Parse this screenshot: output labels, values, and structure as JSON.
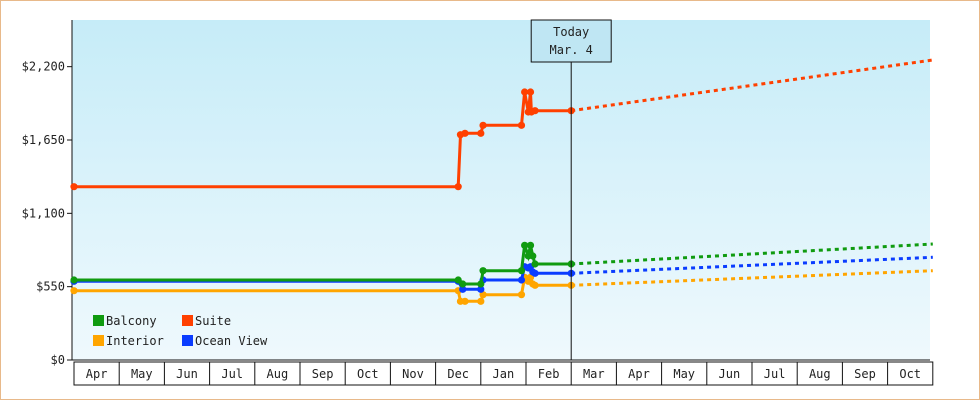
{
  "chart_data": {
    "type": "line",
    "y_axis": {
      "min": 0,
      "max": 2550,
      "ticks": [
        {
          "value": 0,
          "label": "$0"
        },
        {
          "value": 550,
          "label": "$550"
        },
        {
          "value": 1100,
          "label": "$1,100"
        },
        {
          "value": 1650,
          "label": "$1,650"
        },
        {
          "value": 2200,
          "label": "$2,200"
        }
      ]
    },
    "x_axis": {
      "months": [
        "Apr",
        "May",
        "Jun",
        "Jul",
        "Aug",
        "Sep",
        "Oct",
        "Nov",
        "Dec",
        "Jan",
        "Feb",
        "Mar",
        "Apr",
        "May",
        "Jun",
        "Jul",
        "Aug",
        "Sep",
        "Oct"
      ]
    },
    "today": {
      "line1": "Today",
      "line2": "Mar. 4",
      "month_index": 11
    },
    "legend": {
      "placement": "bottom-left"
    },
    "series": [
      {
        "name": "Suite",
        "color": "#ff4000",
        "history": [
          [
            0,
            1300
          ],
          [
            8.5,
            1300
          ],
          [
            8.55,
            1690
          ],
          [
            8.65,
            1700
          ],
          [
            9.0,
            1700
          ],
          [
            9.05,
            1760
          ],
          [
            9.9,
            1760
          ],
          [
            9.97,
            2010
          ],
          [
            10.05,
            1860
          ],
          [
            10.1,
            2010
          ],
          [
            10.12,
            1860
          ],
          [
            10.2,
            1870
          ],
          [
            11.0,
            1870
          ]
        ],
        "markers": [
          [
            0,
            1300
          ],
          [
            8.5,
            1300
          ],
          [
            8.55,
            1690
          ],
          [
            8.65,
            1700
          ],
          [
            9.0,
            1700
          ],
          [
            9.05,
            1760
          ],
          [
            9.9,
            1760
          ],
          [
            9.97,
            2010
          ],
          [
            10.05,
            1860
          ],
          [
            10.1,
            2010
          ],
          [
            10.12,
            1860
          ],
          [
            10.2,
            1870
          ],
          [
            11.0,
            1870
          ]
        ],
        "forecast": [
          [
            11.0,
            1870
          ],
          [
            19.0,
            2250
          ]
        ]
      },
      {
        "name": "Balcony",
        "color": "#109b10",
        "history": [
          [
            0,
            600
          ],
          [
            8.5,
            600
          ],
          [
            8.6,
            570
          ],
          [
            9.0,
            570
          ],
          [
            9.05,
            670
          ],
          [
            9.9,
            670
          ],
          [
            9.97,
            860
          ],
          [
            10.05,
            780
          ],
          [
            10.1,
            860
          ],
          [
            10.15,
            780
          ],
          [
            10.2,
            720
          ],
          [
            11.0,
            720
          ]
        ],
        "markers": [
          [
            0,
            600
          ],
          [
            8.5,
            600
          ],
          [
            8.6,
            570
          ],
          [
            9.0,
            570
          ],
          [
            9.05,
            670
          ],
          [
            9.9,
            670
          ],
          [
            9.97,
            860
          ],
          [
            10.05,
            780
          ],
          [
            10.1,
            860
          ],
          [
            10.15,
            780
          ],
          [
            10.2,
            720
          ],
          [
            11.0,
            720
          ]
        ],
        "forecast": [
          [
            11.0,
            720
          ],
          [
            19.0,
            870
          ]
        ]
      },
      {
        "name": "Interior",
        "color": "#ffa500",
        "history": [
          [
            0,
            520
          ],
          [
            8.5,
            520
          ],
          [
            8.55,
            440
          ],
          [
            8.65,
            440
          ],
          [
            9.0,
            440
          ],
          [
            9.05,
            490
          ],
          [
            9.9,
            490
          ],
          [
            9.97,
            620
          ],
          [
            10.05,
            590
          ],
          [
            10.1,
            620
          ],
          [
            10.15,
            570
          ],
          [
            10.2,
            560
          ],
          [
            11.0,
            560
          ]
        ],
        "markers": [
          [
            0,
            520
          ],
          [
            8.5,
            520
          ],
          [
            8.55,
            440
          ],
          [
            8.65,
            440
          ],
          [
            9.0,
            440
          ],
          [
            9.05,
            490
          ],
          [
            9.9,
            490
          ],
          [
            9.97,
            620
          ],
          [
            10.05,
            590
          ],
          [
            10.1,
            620
          ],
          [
            10.15,
            570
          ],
          [
            10.2,
            560
          ],
          [
            11.0,
            560
          ]
        ],
        "forecast": [
          [
            11.0,
            560
          ],
          [
            19.0,
            670
          ]
        ]
      },
      {
        "name": "Ocean View",
        "color": "#0a3cff",
        "history": [
          [
            0,
            590
          ],
          [
            8.5,
            590
          ],
          [
            8.6,
            530
          ],
          [
            9.0,
            530
          ],
          [
            9.05,
            600
          ],
          [
            9.9,
            600
          ],
          [
            9.97,
            700
          ],
          [
            10.05,
            690
          ],
          [
            10.1,
            700
          ],
          [
            10.15,
            660
          ],
          [
            10.2,
            650
          ],
          [
            11.0,
            650
          ]
        ],
        "markers": [
          [
            0,
            590
          ],
          [
            8.5,
            590
          ],
          [
            8.6,
            530
          ],
          [
            9.0,
            530
          ],
          [
            9.05,
            600
          ],
          [
            9.9,
            600
          ],
          [
            9.97,
            700
          ],
          [
            10.05,
            690
          ],
          [
            10.1,
            700
          ],
          [
            10.15,
            660
          ],
          [
            10.2,
            650
          ],
          [
            11.0,
            650
          ]
        ],
        "forecast": [
          [
            11.0,
            650
          ],
          [
            19.0,
            770
          ]
        ]
      }
    ],
    "legend_order": [
      "Balcony",
      "Suite",
      "Interior",
      "Ocean View"
    ]
  }
}
